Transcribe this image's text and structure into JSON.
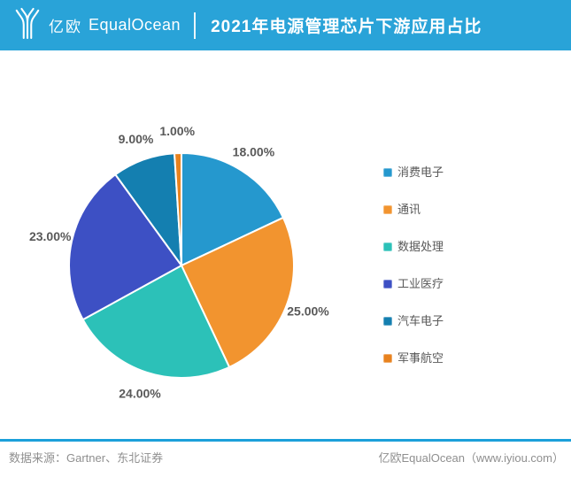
{
  "header": {
    "brand_cn": "亿欧",
    "brand_en": "EqualOcean",
    "title": "2021年电源管理芯片下游应用占比",
    "bar_color": "#29A3D8"
  },
  "chart_data": {
    "type": "pie",
    "title": "2021年电源管理芯片下游应用占比",
    "start_angle_deg": 0,
    "direction": "clockwise",
    "legend_position": "right",
    "label_format": "percent_2dp_outside",
    "items": [
      {
        "label": "消费电子",
        "value": 18,
        "display": "18.00%",
        "color": "#2598CE"
      },
      {
        "label": "通讯",
        "value": 25,
        "display": "25.00%",
        "color": "#F2942F"
      },
      {
        "label": "数据处理",
        "value": 24,
        "display": "24.00%",
        "color": "#2CC1B8"
      },
      {
        "label": "工业医疗",
        "value": 23,
        "display": "23.00%",
        "color": "#3D50C4"
      },
      {
        "label": "汽车电子",
        "value": 9,
        "display": "9.00%",
        "color": "#147FB0"
      },
      {
        "label": "军事航空",
        "value": 1,
        "display": "1.00%",
        "color": "#E8821E"
      }
    ]
  },
  "footer": {
    "line_color": "#1BA0DA",
    "source": "数据来源：Gartner、东北证券",
    "credit": "亿欧EqualOcean（www.iyiou.com）"
  }
}
